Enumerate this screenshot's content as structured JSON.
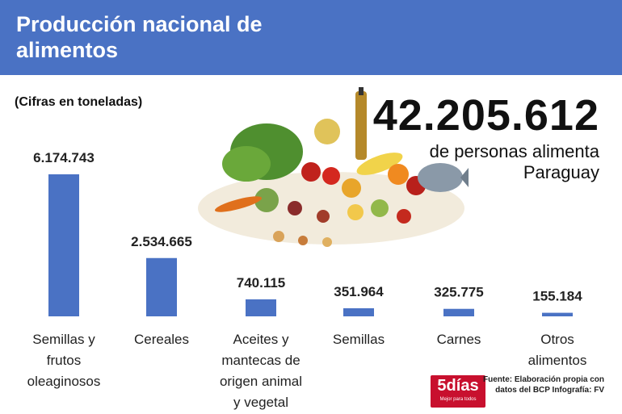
{
  "header": {
    "title": "Producción nacional de alimentos"
  },
  "subtitle": "(Cifras en toneladas)",
  "highlight": {
    "number": "42.205.612",
    "caption": "de personas alimenta Paraguay"
  },
  "chart_data": {
    "type": "bar",
    "title": "Producción nacional de alimentos",
    "categories": [
      [
        "Semillas y",
        "frutos",
        "oleaginosos"
      ],
      [
        "Cereales"
      ],
      [
        "Aceites y",
        "mantecas de",
        "origen animal",
        "y vegetal"
      ],
      [
        "Semillas"
      ],
      [
        "Carnes"
      ],
      [
        "Otros",
        "alimentos"
      ]
    ],
    "values": [
      6174743,
      2534665,
      740115,
      351964,
      325775,
      155184
    ],
    "value_labels": [
      "6.174.743",
      "2.534.665",
      "740.115",
      "351.964",
      "325.775",
      "155.184"
    ],
    "ylim": [
      0,
      6174743
    ],
    "bar_color": "#4a72c4"
  },
  "logo": {
    "text": "5días",
    "tagline": "Mejor para todos"
  },
  "source": "Fuente: Elaboración propia con datos del BCP Infografía: FV",
  "colors": {
    "header_bg": "#4a72c4",
    "bar": "#4a72c4",
    "logo_bg": "#c8102e"
  }
}
